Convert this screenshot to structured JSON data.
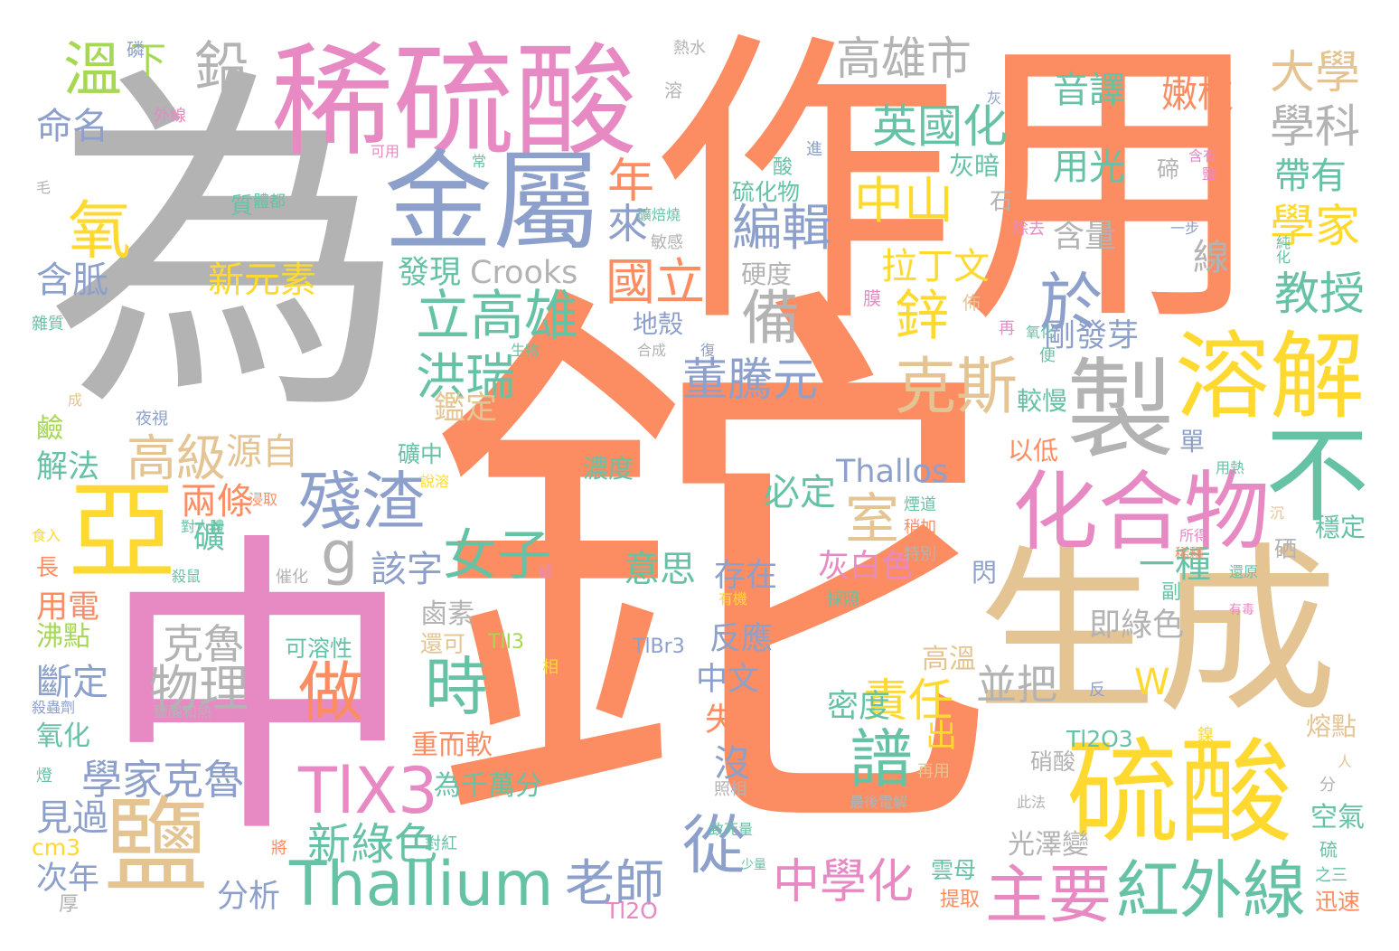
{
  "palette": {
    "orange": "#fc8d62",
    "gray": "#b3b3b3",
    "pink": "#e78ac3",
    "blue": "#8da0cb",
    "green": "#66c2a5",
    "yellow": "#ffd92f",
    "tan": "#e5c494",
    "lime": "#a6d854"
  },
  "words": [
    {
      "text": "鉈",
      "color": "orange"
    },
    {
      "text": "為",
      "color": "gray"
    },
    {
      "text": "作用",
      "color": "orange"
    },
    {
      "text": "中",
      "color": "pink"
    },
    {
      "text": "生成",
      "color": "tan"
    },
    {
      "text": "稀硫酸",
      "color": "pink"
    },
    {
      "text": "金屬",
      "color": "blue"
    },
    {
      "text": "硫酸",
      "color": "yellow"
    },
    {
      "text": "製",
      "color": "gray"
    },
    {
      "text": "溶解",
      "color": "yellow"
    },
    {
      "text": "亞",
      "color": "yellow"
    },
    {
      "text": "鹽",
      "color": "tan"
    },
    {
      "text": "不",
      "color": "green"
    },
    {
      "text": "化合物",
      "color": "pink"
    },
    {
      "text": "Thallium",
      "color": "green"
    },
    {
      "text": "紅外線",
      "color": "green"
    },
    {
      "text": "主要",
      "color": "pink"
    },
    {
      "text": "TlX3",
      "color": "pink"
    },
    {
      "text": "殘渣",
      "color": "blue"
    },
    {
      "text": "克斯",
      "color": "tan"
    },
    {
      "text": "做",
      "color": "orange"
    },
    {
      "text": "時",
      "color": "green"
    },
    {
      "text": "譜",
      "color": "green"
    },
    {
      "text": "從",
      "color": "blue"
    },
    {
      "text": "中學化",
      "color": "pink"
    },
    {
      "text": "老師",
      "color": "blue"
    },
    {
      "text": "高雄市",
      "color": "gray"
    },
    {
      "text": "溫",
      "color": "lime"
    },
    {
      "text": "鉛",
      "color": "gray"
    },
    {
      "text": "氧",
      "color": "yellow"
    },
    {
      "text": "於",
      "color": "blue"
    },
    {
      "text": "備",
      "color": "gray"
    },
    {
      "text": "室",
      "color": "tan"
    },
    {
      "text": "g",
      "color": "gray"
    },
    {
      "text": "女子",
      "color": "green"
    },
    {
      "text": "高級",
      "color": "tan"
    },
    {
      "text": "立高雄",
      "color": "green"
    },
    {
      "text": "洪瑞",
      "color": "green"
    },
    {
      "text": "英國化",
      "color": "green"
    },
    {
      "text": "中山",
      "color": "yellow"
    },
    {
      "text": "編輯",
      "color": "blue"
    },
    {
      "text": "鋅",
      "color": "yellow"
    },
    {
      "text": "國立",
      "color": "orange"
    },
    {
      "text": "年",
      "color": "orange"
    },
    {
      "text": "來",
      "color": "blue"
    },
    {
      "text": "董騰元",
      "color": "blue"
    },
    {
      "text": "責任",
      "color": "yellow"
    },
    {
      "text": "物理",
      "color": "gray"
    },
    {
      "text": "克魯",
      "color": "gray"
    },
    {
      "text": "學家克魯",
      "color": "blue"
    },
    {
      "text": "新綠色",
      "color": "green"
    },
    {
      "text": "教授",
      "color": "green"
    },
    {
      "text": "學科",
      "color": "gray"
    },
    {
      "text": "大學",
      "color": "tan"
    },
    {
      "text": "學家",
      "color": "yellow"
    },
    {
      "text": "帶有",
      "color": "green"
    },
    {
      "text": "音譯",
      "color": "green"
    },
    {
      "text": "嫩枝",
      "color": "orange"
    },
    {
      "text": "用光",
      "color": "green"
    },
    {
      "text": "一種",
      "color": "green"
    },
    {
      "text": "下",
      "color": "lime"
    },
    {
      "text": "命名",
      "color": "blue"
    },
    {
      "text": "含胝",
      "color": "blue"
    },
    {
      "text": "新元素",
      "color": "yellow"
    },
    {
      "text": "發現",
      "color": "green"
    },
    {
      "text": "Crooks",
      "color": "gray"
    },
    {
      "text": "拉丁文",
      "color": "yellow"
    },
    {
      "text": "剛發芽",
      "color": "blue"
    },
    {
      "text": "含量",
      "color": "gray"
    },
    {
      "text": "線",
      "color": "gray"
    },
    {
      "text": "鑑定",
      "color": "tan"
    },
    {
      "text": "源自",
      "color": "tan"
    },
    {
      "text": "兩條",
      "color": "orange"
    },
    {
      "text": "礦",
      "color": "green"
    },
    {
      "text": "該字",
      "color": "blue"
    },
    {
      "text": "必定",
      "color": "green"
    },
    {
      "text": "Thallos",
      "color": "blue"
    },
    {
      "text": "意思",
      "color": "green"
    },
    {
      "text": "灰白色",
      "color": "pink"
    },
    {
      "text": "存在",
      "color": "blue"
    },
    {
      "text": "即綠色",
      "color": "gray"
    },
    {
      "text": "並把",
      "color": "gray"
    },
    {
      "text": "W",
      "color": "yellow"
    },
    {
      "text": "反應",
      "color": "blue"
    },
    {
      "text": "中文",
      "color": "blue"
    },
    {
      "text": "失去",
      "color": "orange"
    },
    {
      "text": "密度",
      "color": "green"
    },
    {
      "text": "高溫",
      "color": "tan"
    },
    {
      "text": "出",
      "color": "yellow"
    },
    {
      "text": "沒",
      "color": "blue"
    },
    {
      "text": "重而軟",
      "color": "orange"
    },
    {
      "text": "為千萬分",
      "color": "green"
    },
    {
      "text": "見過",
      "color": "blue"
    },
    {
      "text": "次年",
      "color": "blue"
    },
    {
      "text": "cm3",
      "color": "yellow"
    },
    {
      "text": "分析",
      "color": "blue"
    },
    {
      "text": "斷定",
      "color": "blue"
    },
    {
      "text": "用電",
      "color": "orange"
    },
    {
      "text": "沸點",
      "color": "lime"
    },
    {
      "text": "氧化",
      "color": "green"
    },
    {
      "text": "解法",
      "color": "green"
    },
    {
      "text": "鹼",
      "color": "lime"
    },
    {
      "text": "長",
      "color": "orange"
    },
    {
      "text": "鹵素",
      "color": "gray"
    },
    {
      "text": "還可",
      "color": "tan"
    },
    {
      "text": "可溶性",
      "color": "green"
    },
    {
      "text": "TlI3",
      "color": "lime"
    },
    {
      "text": "TlBr3",
      "color": "blue"
    },
    {
      "text": "Tl2O3",
      "color": "green"
    },
    {
      "text": "Tl2O",
      "color": "pink"
    },
    {
      "text": "硝酸",
      "color": "gray"
    },
    {
      "text": "光澤變",
      "color": "gray"
    },
    {
      "text": "空氣",
      "color": "green"
    },
    {
      "text": "熔點",
      "color": "tan"
    },
    {
      "text": "迅速",
      "color": "orange"
    },
    {
      "text": "穩定",
      "color": "green"
    },
    {
      "text": "硒",
      "color": "gray"
    },
    {
      "text": "灰暗",
      "color": "green"
    },
    {
      "text": "石",
      "color": "gray"
    },
    {
      "text": "以低",
      "color": "orange"
    },
    {
      "text": "較慢",
      "color": "green"
    },
    {
      "text": "單",
      "color": "blue"
    },
    {
      "text": "硬度",
      "color": "gray"
    },
    {
      "text": "地殼",
      "color": "blue"
    },
    {
      "text": "硫化物",
      "color": "green"
    },
    {
      "text": "濃度",
      "color": "green"
    },
    {
      "text": "礦中",
      "color": "green"
    },
    {
      "text": "閃",
      "color": "blue"
    },
    {
      "text": "雲母",
      "color": "green"
    },
    {
      "text": "提取",
      "color": "orange"
    },
    {
      "text": "碲",
      "color": "gray"
    },
    {
      "text": "熱水",
      "color": "gray"
    },
    {
      "text": "可用",
      "color": "pink"
    },
    {
      "text": "外線",
      "color": "pink"
    },
    {
      "text": "磷",
      "color": "blue"
    },
    {
      "text": "質",
      "color": "green"
    },
    {
      "text": "體都",
      "color": "green"
    },
    {
      "text": "灰",
      "color": "blue"
    },
    {
      "text": "溶",
      "color": "gray"
    },
    {
      "text": "進",
      "color": "blue"
    },
    {
      "text": "酸",
      "color": "green"
    },
    {
      "text": "常",
      "color": "green"
    },
    {
      "text": "毛",
      "color": "gray"
    },
    {
      "text": "雜質",
      "color": "green"
    },
    {
      "text": "成",
      "color": "tan"
    },
    {
      "text": "夜視",
      "color": "blue"
    },
    {
      "text": "生物",
      "color": "green"
    },
    {
      "text": "合成",
      "color": "gray"
    },
    {
      "text": "復",
      "color": "blue"
    },
    {
      "text": "礦焙燒",
      "color": "green"
    },
    {
      "text": "敏感",
      "color": "gray"
    },
    {
      "text": "含有",
      "color": "pink"
    },
    {
      "text": "鹽",
      "color": "pink"
    },
    {
      "text": "一步",
      "color": "blue"
    },
    {
      "text": "純化",
      "color": "green"
    },
    {
      "text": "除去",
      "color": "pink"
    },
    {
      "text": "膜",
      "color": "pink"
    },
    {
      "text": "佈",
      "color": "tan"
    },
    {
      "text": "再",
      "color": "pink"
    },
    {
      "text": "氧化",
      "color": "green"
    },
    {
      "text": "便",
      "color": "green"
    },
    {
      "text": "用熱",
      "color": "green"
    },
    {
      "text": "沉",
      "color": "tan"
    },
    {
      "text": "所得",
      "color": "pink"
    },
    {
      "text": "稀釋",
      "color": "orange"
    },
    {
      "text": "還原",
      "color": "green"
    },
    {
      "text": "副",
      "color": "green"
    },
    {
      "text": "有毒",
      "color": "pink"
    },
    {
      "text": "煙道",
      "color": "green"
    },
    {
      "text": "稍加",
      "color": "orange"
    },
    {
      "text": "特別",
      "color": "gray"
    },
    {
      "text": "採照",
      "color": "green"
    },
    {
      "text": "有機",
      "color": "yellow"
    },
    {
      "text": "催化",
      "color": "gray"
    },
    {
      "text": "殺鼠",
      "color": "green"
    },
    {
      "text": "對人體",
      "color": "green"
    },
    {
      "text": "浸取",
      "color": "orange"
    },
    {
      "text": "說溶",
      "color": "yellow"
    },
    {
      "text": "食入",
      "color": "yellow"
    },
    {
      "text": "殺蟲劑",
      "color": "blue"
    },
    {
      "text": "鹽酸和熱",
      "color": "gray"
    },
    {
      "text": "相",
      "color": "yellow"
    },
    {
      "text": "燈",
      "color": "green"
    },
    {
      "text": "將",
      "color": "orange"
    },
    {
      "text": "對紅",
      "color": "green"
    },
    {
      "text": "少量",
      "color": "green"
    },
    {
      "text": "照相",
      "color": "gray"
    },
    {
      "text": "致死量",
      "color": "green"
    },
    {
      "text": "最後電解",
      "color": "gray"
    },
    {
      "text": "再用",
      "color": "tan"
    },
    {
      "text": "此法",
      "color": "gray"
    },
    {
      "text": "鎳",
      "color": "yellow"
    },
    {
      "text": "反",
      "color": "blue"
    },
    {
      "text": "分",
      "color": "gray"
    },
    {
      "text": "人",
      "color": "tan"
    },
    {
      "text": "之三",
      "color": "green"
    },
    {
      "text": "硫",
      "color": "green"
    },
    {
      "text": "厚",
      "color": "gray"
    },
    {
      "text": "戳",
      "color": "pink"
    }
  ]
}
